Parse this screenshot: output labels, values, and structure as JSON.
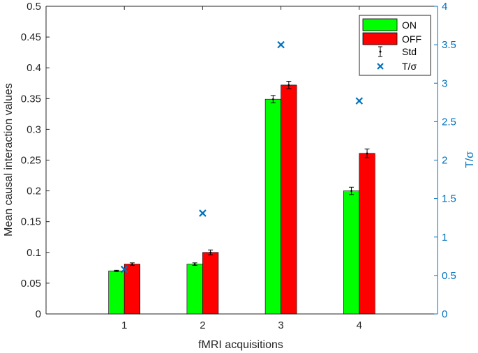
{
  "chart_data": {
    "type": "bar",
    "title": "",
    "xlabel": "fMRI acquisitions",
    "ylabel": "Mean  causal interaction values",
    "y2label": "T/σ",
    "categories": [
      "1",
      "2",
      "3",
      "4"
    ],
    "xlim": [
      0,
      5
    ],
    "ylim": [
      0,
      0.5
    ],
    "y2lim": [
      0,
      4
    ],
    "yticks": [
      "0",
      "0.05",
      "0.1",
      "0.15",
      "0.2",
      "0.25",
      "0.3",
      "0.35",
      "0.4",
      "0.45",
      "0.5"
    ],
    "y2ticks": [
      "0",
      "0.5",
      "1",
      "1.5",
      "2",
      "2.5",
      "3",
      "3.5",
      "4"
    ],
    "series": [
      {
        "name": "ON",
        "color": "#00ff00",
        "values": [
          0.07,
          0.081,
          0.349,
          0.2
        ],
        "std": [
          0.001,
          0.002,
          0.006,
          0.006
        ]
      },
      {
        "name": "OFF",
        "color": "#ff0000",
        "values": [
          0.081,
          0.1,
          0.372,
          0.261
        ],
        "std": [
          0.002,
          0.004,
          0.006,
          0.007
        ]
      }
    ],
    "marker_series": {
      "name": "T/σ",
      "color": "#0072bd",
      "axis": "right",
      "values": [
        0.58,
        1.31,
        3.5,
        2.77
      ]
    },
    "errorbar_legend": "Std",
    "legend_position": "top-right",
    "grid": false
  }
}
